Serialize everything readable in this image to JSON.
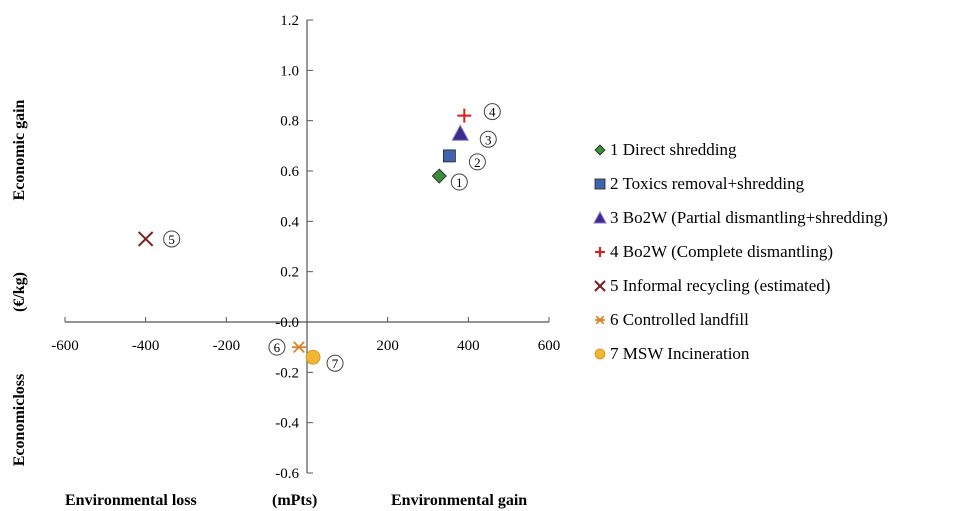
{
  "chart_data": {
    "type": "scatter",
    "title": "",
    "xlim": [
      -600,
      600
    ],
    "ylim": [
      -0.6,
      1.2
    ],
    "x_ticks": [
      "-600",
      "-400",
      "-200",
      "-0.0",
      "200",
      "400",
      "600"
    ],
    "y_ticks": [
      "1.2",
      "1.0",
      "0.8",
      "0.6",
      "0.4",
      "0.2",
      "-0.0",
      "-0.2",
      "-0.4",
      "-0.6"
    ],
    "grid": false,
    "legend_position": "right",
    "x_labels": {
      "left": "Environmental loss",
      "center": "(mPts)",
      "right": "Environmental gain"
    },
    "y_labels": {
      "top": "Economic gain",
      "middle": "(€/kg)",
      "bottom": "Economicloss"
    },
    "series": [
      {
        "name": "1 Direct shredding",
        "marker": "diamond",
        "color": "#3c8c3c",
        "point_label": "①",
        "x": 328,
        "y": 0.58
      },
      {
        "name": "2 Toxics removal+shredding",
        "marker": "square",
        "color": "#3f63b0",
        "point_label": "②",
        "x": 353,
        "y": 0.66
      },
      {
        "name": "3 Bo2W (Partial dismantling+shredding)",
        "marker": "triangle",
        "color": "#3a2c8c",
        "point_label": "③",
        "x": 380,
        "y": 0.75
      },
      {
        "name": "4 Bo2W (Complete dismantling)",
        "marker": "plus",
        "color": "#e31a1c",
        "point_label": "④",
        "x": 390,
        "y": 0.82
      },
      {
        "name": "5 Informal recycling (estimated)",
        "marker": "x",
        "color": "#7a1f1f",
        "point_label": "⑤",
        "x": -400,
        "y": 0.33
      },
      {
        "name": "6 Controlled landfill",
        "marker": "star",
        "color": "#d9822b",
        "point_label": "⑥",
        "x": -20,
        "y": -0.1
      },
      {
        "name": "7 MSW Incineration",
        "marker": "circle",
        "color": "#f2b632",
        "point_label": "⑦",
        "x": 15,
        "y": -0.14
      }
    ]
  }
}
